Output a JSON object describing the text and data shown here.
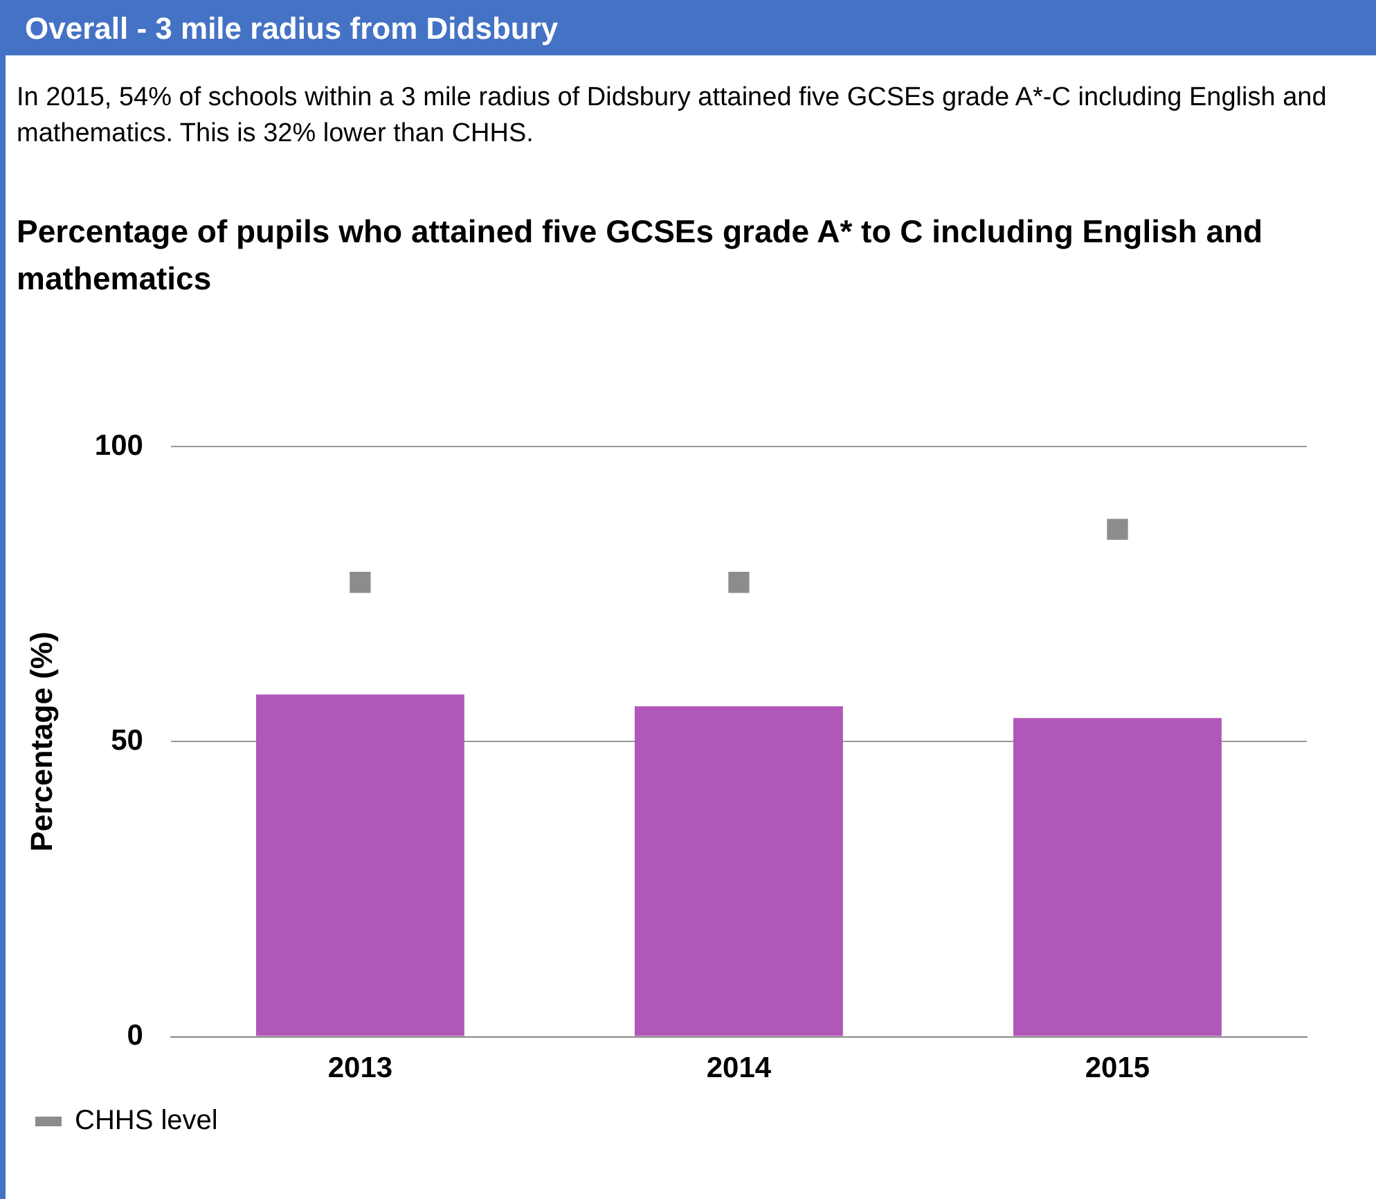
{
  "chart_data": {
    "type": "bar",
    "title": "Percentage of pupils who attained five GCSEs grade A* to C including English and mathematics",
    "annotations": [
      "Overall - 3 mile radius from Didsbury",
      "In 2015, 54% of schools within a 3 mile radius of Didsbury attained five GCSEs grade A*-C including English and mathematics. This is 32% lower than CHHS."
    ],
    "ylabel": "Percentage (%)",
    "categories": [
      "2013",
      "2014",
      "2015"
    ],
    "series": [
      {
        "color": "#b157b9",
        "values": [
          58,
          56,
          54
        ]
      },
      {
        "name": "CHHS level",
        "type": "scatter",
        "color": "#8c8c8c",
        "values": [
          77,
          77,
          86
        ]
      }
    ],
    "ylim": [
      0,
      100
    ],
    "yticks": [
      0,
      50,
      100
    ],
    "grid": "y",
    "legend": "bottom left",
    "marker": "square"
  }
}
